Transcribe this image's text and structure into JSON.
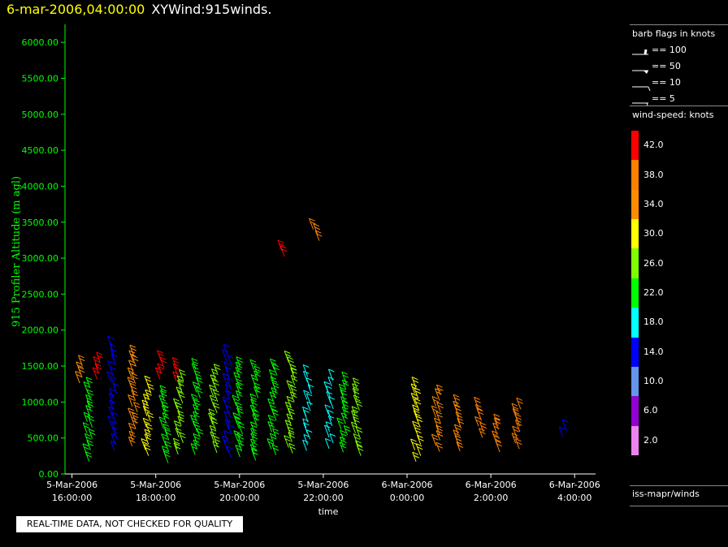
{
  "header": {
    "datetime": "6-mar-2006,04:00:00",
    "name": "XYWind:915winds."
  },
  "legend": {
    "barb_title": "barb flags in knots",
    "barb_items": [
      "== 100",
      "== 50",
      "== 10",
      "== 5"
    ],
    "speed_title": "wind-speed: knots",
    "speed_bins": [
      {
        "label": "42.0",
        "color": "#ff0000"
      },
      {
        "label": "38.0",
        "color": "#ff8000"
      },
      {
        "label": "34.0",
        "color": "#ff8c00"
      },
      {
        "label": "30.0",
        "color": "#ffff00"
      },
      {
        "label": "26.0",
        "color": "#80ff00"
      },
      {
        "label": "22.0",
        "color": "#00ff00"
      },
      {
        "label": "18.0",
        "color": "#00ffff"
      },
      {
        "label": "14.0",
        "color": "#0000ff"
      },
      {
        "label": "10.0",
        "color": "#6495ed"
      },
      {
        "label": "6.0",
        "color": "#9400d3"
      },
      {
        "label": "2.0",
        "color": "#ee82ee"
      }
    ],
    "source": "iss-mapr/winds"
  },
  "quality_note": "REAL-TIME DATA, NOT CHECKED FOR QUALITY",
  "chart_data": {
    "type": "scatter",
    "title": "",
    "xlabel": "time",
    "ylabel": "915 Profiler Altitude (m agl)",
    "x_ticks": [
      {
        "time": "2006-03-05 16:00",
        "label": [
          "5-Mar-2006",
          "16:00:00"
        ]
      },
      {
        "time": "2006-03-05 18:00",
        "label": [
          "5-Mar-2006",
          "18:00:00"
        ]
      },
      {
        "time": "2006-03-05 20:00",
        "label": [
          "5-Mar-2006",
          "20:00:00"
        ]
      },
      {
        "time": "2006-03-05 22:00",
        "label": [
          "5-Mar-2006",
          "22:00:00"
        ]
      },
      {
        "time": "2006-03-06 00:00",
        "label": [
          "6-Mar-2006",
          "0:00:00"
        ]
      },
      {
        "time": "2006-03-06 02:00",
        "label": [
          "6-Mar-2006",
          "2:00:00"
        ]
      },
      {
        "time": "2006-03-06 04:00",
        "label": [
          "6-Mar-2006",
          "4:00:00"
        ]
      }
    ],
    "y_ticks": [
      "0.00",
      "500.00",
      "1000.00",
      "1500.00",
      "2000.00",
      "2500.00",
      "3000.00",
      "3500.00",
      "4000.00",
      "4500.00",
      "5000.00",
      "5500.00",
      "6000.00"
    ],
    "xlim": [
      "2006-03-05 15:50",
      "2006-03-06 04:30"
    ],
    "ylim": [
      0,
      6250
    ],
    "axis_color": "#00ff00",
    "profiles": [
      {
        "time": "2006-03-05 16:15",
        "ymin": 1250,
        "ymax": 1500,
        "kt": 34
      },
      {
        "time": "2006-03-05 16:25",
        "ymin": 150,
        "ymax": 1200,
        "kt": 22
      },
      {
        "time": "2006-03-05 16:40",
        "ymin": 1300,
        "ymax": 1550,
        "kt": 42
      },
      {
        "time": "2006-03-05 17:00",
        "ymin": 300,
        "ymax": 1750,
        "kt": 14
      },
      {
        "time": "2006-03-05 17:30",
        "ymin": 350,
        "ymax": 1650,
        "kt": 34
      },
      {
        "time": "2006-03-05 17:50",
        "ymin": 200,
        "ymax": 1200,
        "kt": 30
      },
      {
        "time": "2006-03-05 18:10",
        "ymin": 1300,
        "ymax": 1550,
        "kt": 42
      },
      {
        "time": "2006-03-05 18:15",
        "ymin": 150,
        "ymax": 1100,
        "kt": 22
      },
      {
        "time": "2006-03-05 18:30",
        "ymin": 1250,
        "ymax": 1450,
        "kt": 40
      },
      {
        "time": "2006-03-05 18:35",
        "ymin": 200,
        "ymax": 1300,
        "kt": 26
      },
      {
        "time": "2006-03-05 19:00",
        "ymin": 200,
        "ymax": 1450,
        "kt": 22
      },
      {
        "time": "2006-03-05 19:25",
        "ymin": 250,
        "ymax": 1400,
        "kt": 26
      },
      {
        "time": "2006-03-05 19:45",
        "ymin": 200,
        "ymax": 1650,
        "kt": 14
      },
      {
        "time": "2006-03-05 20:00",
        "ymin": 200,
        "ymax": 1500,
        "kt": 22
      },
      {
        "time": "2006-03-05 20:25",
        "ymin": 150,
        "ymax": 1450,
        "kt": 22
      },
      {
        "time": "2006-03-05 20:50",
        "ymin": 200,
        "ymax": 1450,
        "kt": 22
      },
      {
        "time": "2006-03-05 21:05",
        "ymin": 2950,
        "ymax": 3100,
        "kt": 42
      },
      {
        "time": "2006-03-05 21:15",
        "ymin": 250,
        "ymax": 1550,
        "kt": 26
      },
      {
        "time": "2006-03-05 21:40",
        "ymin": 250,
        "ymax": 1350,
        "kt": 18
      },
      {
        "time": "2006-03-05 21:50",
        "ymin": 3200,
        "ymax": 3400,
        "kt": 38
      },
      {
        "time": "2006-03-05 22:10",
        "ymin": 300,
        "ymax": 1300,
        "kt": 18
      },
      {
        "time": "2006-03-05 22:30",
        "ymin": 250,
        "ymax": 1250,
        "kt": 22
      },
      {
        "time": "2006-03-05 22:50",
        "ymin": 200,
        "ymax": 1200,
        "kt": 26
      },
      {
        "time": "2006-03-06 00:15",
        "ymin": 150,
        "ymax": 1200,
        "kt": 30
      },
      {
        "time": "2006-03-06 00:45",
        "ymin": 250,
        "ymax": 1100,
        "kt": 34
      },
      {
        "time": "2006-03-06 01:15",
        "ymin": 250,
        "ymax": 950,
        "kt": 34
      },
      {
        "time": "2006-03-06 01:45",
        "ymin": 500,
        "ymax": 900,
        "kt": 36
      },
      {
        "time": "2006-03-06 02:10",
        "ymin": 300,
        "ymax": 700,
        "kt": 38
      },
      {
        "time": "2006-03-06 02:40",
        "ymin": 300,
        "ymax": 900,
        "kt": 36
      },
      {
        "time": "2006-03-06 03:45",
        "ymin": 450,
        "ymax": 600,
        "kt": 14
      }
    ]
  }
}
